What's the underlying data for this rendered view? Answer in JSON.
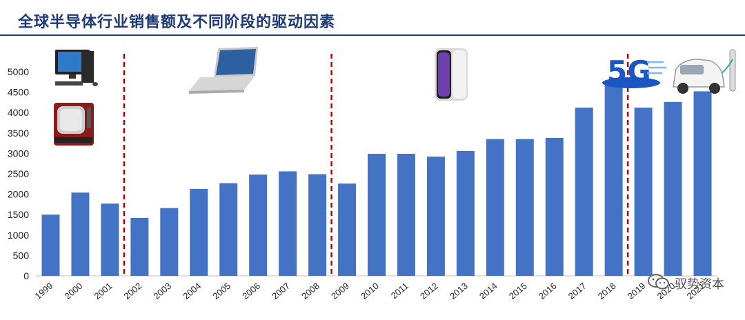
{
  "header": {
    "title": "全球半导体行业销售额及不同阶段的驱动因素"
  },
  "watermark": {
    "text": "驭势资本"
  },
  "colors": {
    "bar": "#4472c4",
    "divider": "#c00000",
    "title": "#1f3a7a"
  },
  "stage_icons": [
    [
      "desktop-computer",
      "crt-television"
    ],
    [
      "laptop"
    ],
    [
      "smartphone"
    ],
    [
      "5g-logo",
      "electric-car"
    ]
  ],
  "chart_data": {
    "type": "bar",
    "categories": [
      "1999",
      "2000",
      "2001",
      "2002",
      "2003",
      "2004",
      "2005",
      "2006",
      "2007",
      "2008",
      "2009",
      "2010",
      "2011",
      "2012",
      "2013",
      "2014",
      "2015",
      "2016",
      "2017",
      "2018",
      "2019",
      "2020",
      "2021"
    ],
    "values": [
      1500,
      2040,
      1770,
      1420,
      1660,
      2130,
      2270,
      2480,
      2560,
      2490,
      2260,
      2990,
      2990,
      2920,
      3060,
      3350,
      3350,
      3380,
      4120,
      4710,
      4120,
      4260,
      4520
    ],
    "ylim": [
      0,
      5000
    ],
    "yticks": [
      0,
      500,
      1000,
      1500,
      2000,
      2500,
      3000,
      3500,
      4000,
      4500,
      5000
    ],
    "yticklabels": [
      "0",
      "500",
      "1000",
      "1500",
      "2000",
      "2500",
      "3000",
      "3500",
      "4000",
      "4500",
      "5000"
    ],
    "stage_dividers_after": [
      "2001",
      "2008",
      "2018"
    ],
    "grid": false,
    "title": "",
    "xlabel": "",
    "ylabel": ""
  }
}
